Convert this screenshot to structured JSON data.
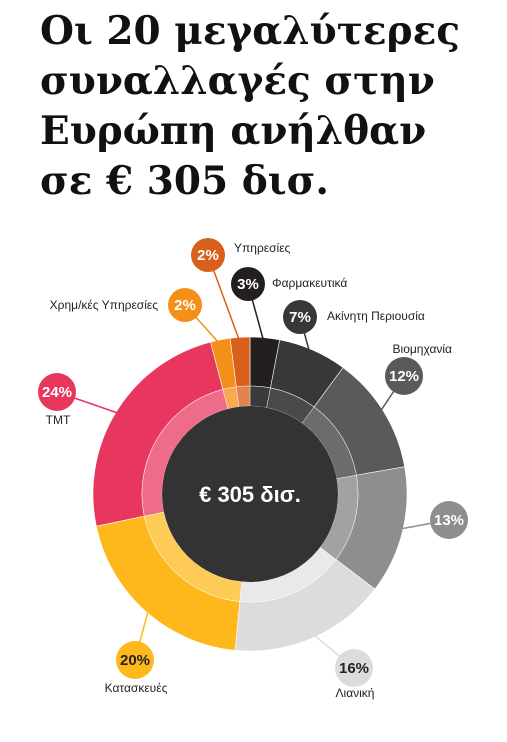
{
  "title_lines": [
    "Οι 20 μεγαλύτερες",
    "συναλλαγές στην",
    "Ευρώπη ανήλθαν",
    "σε € 305 δισ."
  ],
  "chart_data": {
    "type": "pie",
    "center_label": "€ 305 δισ.",
    "slices": [
      {
        "name": "Φαρμακευτικά",
        "value": 3,
        "label": "3%",
        "color": "#231f20",
        "inner": "#3a3a3a",
        "text_color": "#ffffff"
      },
      {
        "name": "Ακίνητη Περιουσία",
        "value": 7,
        "label": "7%",
        "color": "#38383a",
        "inner": "#4a4a4c",
        "text_color": "#ffffff"
      },
      {
        "name": "Βιομηχανία",
        "value": 12,
        "label": "12%",
        "color": "#5a5a5c",
        "inner": "#6c6c6e",
        "text_color": "#ffffff"
      },
      {
        "name": "",
        "value": 13,
        "label": "13%",
        "color": "#8e8e90",
        "inner": "#a2a2a4",
        "text_color": "#ffffff"
      },
      {
        "name": "Λιανική",
        "value": 16,
        "label": "16%",
        "color": "#dcdcdd",
        "inner": "#e9e9ea",
        "text_color": "#222222"
      },
      {
        "name": "Κατασκευές",
        "value": 20,
        "label": "20%",
        "color": "#ffb81c",
        "inner": "#ffcb57",
        "text_color": "#222222"
      },
      {
        "name": "TMT",
        "value": 24,
        "label": "24%",
        "color": "#e8375e",
        "inner": "#ef6b8a",
        "text_color": "#ffffff"
      },
      {
        "name": "Χρημ/κές Υπηρεσίες",
        "value": 2,
        "label": "2%",
        "color": "#f39019",
        "inner": "#f7aa52",
        "text_color": "#ffffff"
      },
      {
        "name": "Υπηρεσίες",
        "value": 2,
        "label": "2%",
        "color": "#d8601c",
        "inner": "#e2834d",
        "text_color": "#ffffff"
      }
    ]
  }
}
